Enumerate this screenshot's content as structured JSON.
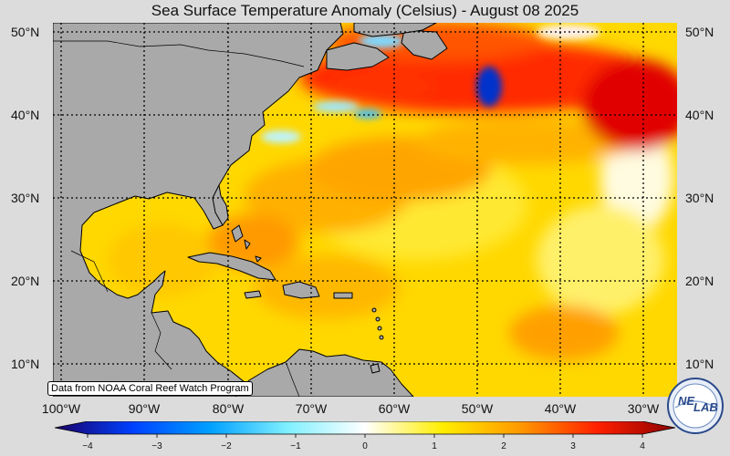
{
  "title": "Sea Surface Temperature Anomaly (Celsius) - August 08 2025",
  "latitudes": [
    "50°N",
    "40°N",
    "30°N",
    "20°N",
    "10°N"
  ],
  "longitudes": [
    "100°W",
    "90°W",
    "80°W",
    "70°W",
    "60°W",
    "50°W",
    "40°W",
    "30°W"
  ],
  "credit": "Data from NOAA Coral Reef Watch Program",
  "colorbar": {
    "ticks": [
      "−4",
      "−3",
      "−2",
      "−1",
      "0",
      "1",
      "2",
      "3",
      "4"
    ],
    "min": -4,
    "max": 4,
    "colors": [
      "#1a0066",
      "#0040ff",
      "#00a0ff",
      "#80f0ff",
      "#ffffff",
      "#ffee00",
      "#ff9900",
      "#ff2000",
      "#8b0000"
    ]
  },
  "logo": {
    "text_left": "NE",
    "text_right": "LAB"
  },
  "land_color": "#a9a9a9"
}
